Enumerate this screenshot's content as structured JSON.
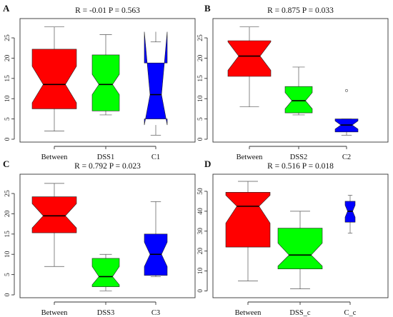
{
  "chart_data": [
    {
      "type": "boxplot",
      "panel": "A",
      "title": "R = -0.01   P = 0.563",
      "ylim": [
        0,
        28
      ],
      "yticks": [
        0,
        5,
        10,
        15,
        20,
        25
      ],
      "categories": [
        "Between",
        "DSS1",
        "C1"
      ],
      "boxes": [
        {
          "label": "Between",
          "color": "#ff0000",
          "min": 2,
          "q1": 7.5,
          "median": 13.5,
          "q3": 22.2,
          "max": 27.7,
          "notch_lo": 9,
          "notch_hi": 18
        },
        {
          "label": "DSS1",
          "color": "#00ff00",
          "min": 6,
          "q1": 7,
          "median": 13.5,
          "q3": 20.8,
          "max": 25.8,
          "notch_lo": 11,
          "notch_hi": 16
        },
        {
          "label": "C1",
          "color": "#0000ff",
          "min": 1,
          "q1": 5,
          "median": 11,
          "q3": 18.8,
          "max": 24,
          "notch_lo": 3.5,
          "notch_hi": 26.5
        }
      ],
      "outliers": []
    },
    {
      "type": "boxplot",
      "panel": "B",
      "title": "R = 0.875   P = 0.033",
      "ylim": [
        0,
        28
      ],
      "yticks": [
        0,
        5,
        10,
        15,
        20,
        25
      ],
      "categories": [
        "Between",
        "DSS2",
        "C2"
      ],
      "boxes": [
        {
          "label": "Between",
          "color": "#ff0000",
          "min": 8,
          "q1": 15.5,
          "median": 20.5,
          "q3": 24.3,
          "max": 27.7,
          "notch_lo": 17,
          "notch_hi": 24
        },
        {
          "label": "DSS2",
          "color": "#00ff00",
          "min": 6,
          "q1": 6.5,
          "median": 9.5,
          "q3": 13,
          "max": 17.8,
          "notch_lo": 7.5,
          "notch_hi": 11.5
        },
        {
          "label": "C2",
          "color": "#0000ff",
          "min": 1,
          "q1": 1.8,
          "median": 3.5,
          "q3": 5,
          "max": 5,
          "notch_lo": 2.5,
          "notch_hi": 4.5
        }
      ],
      "outliers": [
        {
          "category": "C2",
          "value": 12
        }
      ]
    },
    {
      "type": "boxplot",
      "panel": "C",
      "title": "R = 0.792   P = 0.023",
      "ylim": [
        0,
        28
      ],
      "yticks": [
        0,
        5,
        10,
        15,
        20,
        25
      ],
      "categories": [
        "Between",
        "DSS3",
        "C3"
      ],
      "boxes": [
        {
          "label": "Between",
          "color": "#ff0000",
          "min": 7,
          "q1": 15.3,
          "median": 19.5,
          "q3": 24.2,
          "max": 27.5,
          "notch_lo": 16.5,
          "notch_hi": 22.5
        },
        {
          "label": "DSS3",
          "color": "#00ff00",
          "min": 1,
          "q1": 2,
          "median": 4.5,
          "q3": 9,
          "max": 10,
          "notch_lo": 2.5,
          "notch_hi": 7
        },
        {
          "label": "C3",
          "color": "#0000ff",
          "min": 4.5,
          "q1": 4.8,
          "median": 10,
          "q3": 15,
          "max": 23,
          "notch_lo": 7,
          "notch_hi": 13
        }
      ],
      "outliers": []
    },
    {
      "type": "boxplot",
      "panel": "D",
      "title": "R = 0.516   P = 0.018",
      "ylim": [
        -2,
        55
      ],
      "yticks": [
        0,
        10,
        20,
        30,
        40,
        50
      ],
      "categories": [
        "Between",
        "DSS_c",
        "C_c"
      ],
      "boxes": [
        {
          "label": "Between",
          "color": "#ff0000",
          "min": 5,
          "q1": 22,
          "median": 42.5,
          "q3": 49.5,
          "max": 55,
          "notch_lo": 34,
          "notch_hi": 48
        },
        {
          "label": "DSS_c",
          "color": "#00ff00",
          "min": 1,
          "q1": 11,
          "median": 18,
          "q3": 31.5,
          "max": 40,
          "notch_lo": 12.5,
          "notch_hi": 24
        },
        {
          "label": "C_c",
          "color": "#0000ff",
          "min": 29,
          "q1": 34.5,
          "median": 40,
          "q3": 45,
          "max": 48,
          "notch_lo": 37,
          "notch_hi": 43
        }
      ],
      "outliers": []
    }
  ]
}
